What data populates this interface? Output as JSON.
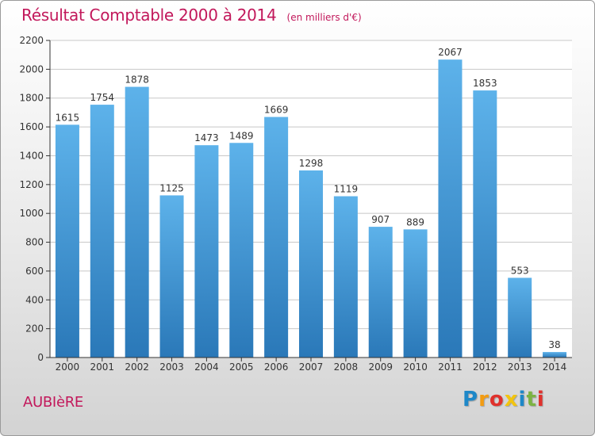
{
  "header": {
    "title": "Résultat Comptable 2000 à 2014",
    "subtitle": "(en milliers d'€)"
  },
  "footer": {
    "commune": "AUBIèRE"
  },
  "logo": {
    "text": "Proxiti",
    "letters": [
      "P",
      "r",
      "o",
      "x",
      "i",
      "t",
      "i"
    ],
    "colors": [
      "#1e88c8",
      "#f39c12",
      "#e0312c",
      "#f2c40f",
      "#1e88c8",
      "#7cb342",
      "#e0312c"
    ]
  },
  "colors": {
    "bar_top": "#5db2ea",
    "bar_bottom": "#2a78b8",
    "title": "#c2185b",
    "axis": "#333333",
    "grid": "#c8c8c8"
  },
  "chart_data": {
    "type": "bar",
    "title": "Résultat Comptable 2000 à 2014",
    "subtitle": "(en milliers d'€)",
    "categories": [
      "2000",
      "2001",
      "2002",
      "2003",
      "2004",
      "2005",
      "2006",
      "2007",
      "2008",
      "2009",
      "2010",
      "2011",
      "2012",
      "2013",
      "2014"
    ],
    "values": [
      1615,
      1754,
      1878,
      1125,
      1473,
      1489,
      1669,
      1298,
      1119,
      907,
      889,
      2067,
      1853,
      553,
      38
    ],
    "data_labels": [
      "1615",
      "1754",
      "1878",
      "1125",
      "1473",
      "1489",
      "1669",
      "1298",
      "1119",
      "907",
      "889",
      "2067",
      "1853",
      "553",
      "38"
    ],
    "yticks": [
      "0",
      "200",
      "400",
      "600",
      "800",
      "1000",
      "1200",
      "1400",
      "1600",
      "1800",
      "2000",
      "2200"
    ],
    "ylim": [
      0,
      2200
    ],
    "ystep": 200,
    "grid": true,
    "legend": "none",
    "xlabel": "",
    "ylabel": ""
  }
}
